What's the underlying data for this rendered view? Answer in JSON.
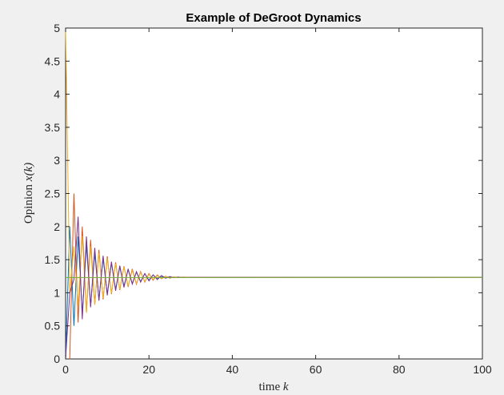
{
  "chart_data": {
    "type": "line",
    "title": "Example of DeGroot Dynamics",
    "xlabel": {
      "text": "time ",
      "var": "k"
    },
    "ylabel": {
      "text": "Opinion ",
      "math": "x(k)"
    },
    "xlim": [
      0,
      100
    ],
    "ylim": [
      0,
      5
    ],
    "xticks": [
      0,
      20,
      40,
      60,
      80,
      100
    ],
    "xtick_labels": [
      "0",
      "20",
      "40",
      "60",
      "80",
      "100"
    ],
    "yticks": [
      0,
      0.5,
      1,
      1.5,
      2,
      2.5,
      3,
      3.5,
      4,
      4.5,
      5
    ],
    "ytick_labels": [
      "0",
      "0.5",
      "1",
      "1.5",
      "2",
      "2.5",
      "3",
      "3.5",
      "4",
      "4.5",
      "5"
    ],
    "grid": false,
    "legend": "none",
    "series": [
      {
        "color": "#0072bd",
        "points": [
          [
            0,
            0
          ],
          [
            1,
            2.0
          ],
          [
            2,
            0.5
          ],
          [
            3,
            1.85
          ],
          [
            4,
            0.68
          ],
          [
            5,
            1.72
          ],
          [
            6,
            0.8
          ],
          [
            7,
            1.6
          ],
          [
            8,
            0.9
          ],
          [
            9,
            1.52
          ],
          [
            10,
            0.98
          ],
          [
            11,
            1.45
          ],
          [
            12,
            1.05
          ],
          [
            13,
            1.39
          ],
          [
            14,
            1.1
          ],
          [
            15,
            1.35
          ],
          [
            16,
            1.14
          ],
          [
            17,
            1.31
          ],
          [
            18,
            1.17
          ],
          [
            19,
            1.29
          ],
          [
            20,
            1.19
          ],
          [
            21,
            1.27
          ],
          [
            22,
            1.21
          ],
          [
            23,
            1.25
          ],
          [
            24,
            1.22
          ],
          [
            25,
            1.24
          ],
          [
            26,
            1.23
          ],
          [
            27,
            1.235
          ],
          [
            28,
            1.232
          ],
          [
            30,
            1.233
          ],
          [
            100,
            1.233
          ]
        ]
      },
      {
        "color": "#d95319",
        "points": [
          [
            0,
            0
          ],
          [
            1,
            0
          ],
          [
            2,
            2.5
          ],
          [
            3,
            0.55
          ],
          [
            4,
            2.0
          ],
          [
            5,
            0.7
          ],
          [
            6,
            1.8
          ],
          [
            7,
            0.82
          ],
          [
            8,
            1.65
          ],
          [
            9,
            0.9
          ],
          [
            10,
            1.55
          ],
          [
            11,
            0.98
          ],
          [
            12,
            1.46
          ],
          [
            13,
            1.04
          ],
          [
            14,
            1.4
          ],
          [
            15,
            1.09
          ],
          [
            16,
            1.36
          ],
          [
            17,
            1.13
          ],
          [
            18,
            1.32
          ],
          [
            19,
            1.16
          ],
          [
            20,
            1.29
          ],
          [
            21,
            1.19
          ],
          [
            22,
            1.27
          ],
          [
            23,
            1.21
          ],
          [
            24,
            1.25
          ],
          [
            25,
            1.22
          ],
          [
            26,
            1.24
          ],
          [
            27,
            1.228
          ],
          [
            28,
            1.236
          ],
          [
            30,
            1.233
          ],
          [
            100,
            1.233
          ]
        ]
      },
      {
        "color": "#edb120",
        "points": [
          [
            0,
            5.0
          ],
          [
            1,
            1.0
          ],
          [
            2,
            1.7
          ],
          [
            3,
            0.8
          ],
          [
            4,
            1.86
          ],
          [
            5,
            0.7
          ],
          [
            6,
            1.7
          ],
          [
            7,
            0.82
          ],
          [
            8,
            1.6
          ],
          [
            9,
            0.92
          ],
          [
            10,
            1.52
          ],
          [
            11,
            0.99
          ],
          [
            12,
            1.44
          ],
          [
            13,
            1.05
          ],
          [
            14,
            1.39
          ],
          [
            15,
            1.1
          ],
          [
            16,
            1.34
          ],
          [
            17,
            1.14
          ],
          [
            18,
            1.31
          ],
          [
            19,
            1.17
          ],
          [
            20,
            1.28
          ],
          [
            21,
            1.2
          ],
          [
            22,
            1.26
          ],
          [
            23,
            1.215
          ],
          [
            24,
            1.25
          ],
          [
            25,
            1.225
          ],
          [
            26,
            1.24
          ],
          [
            27,
            1.23
          ],
          [
            28,
            1.236
          ],
          [
            30,
            1.233
          ],
          [
            100,
            1.233
          ]
        ]
      },
      {
        "color": "#7e2f8e",
        "points": [
          [
            0,
            0
          ],
          [
            1,
            1.0
          ],
          [
            2,
            1.2
          ],
          [
            3,
            2.15
          ],
          [
            4,
            0.6
          ],
          [
            5,
            1.85
          ],
          [
            6,
            0.78
          ],
          [
            7,
            1.68
          ],
          [
            8,
            0.88
          ],
          [
            9,
            1.56
          ],
          [
            10,
            0.96
          ],
          [
            11,
            1.47
          ],
          [
            12,
            1.03
          ],
          [
            13,
            1.41
          ],
          [
            14,
            1.08
          ],
          [
            15,
            1.36
          ],
          [
            16,
            1.13
          ],
          [
            17,
            1.32
          ],
          [
            18,
            1.16
          ],
          [
            19,
            1.29
          ],
          [
            20,
            1.18
          ],
          [
            21,
            1.27
          ],
          [
            22,
            1.2
          ],
          [
            23,
            1.26
          ],
          [
            24,
            1.22
          ],
          [
            25,
            1.245
          ],
          [
            26,
            1.227
          ],
          [
            27,
            1.238
          ],
          [
            28,
            1.231
          ],
          [
            30,
            1.233
          ],
          [
            100,
            1.233
          ]
        ]
      },
      {
        "color": "#77ac30",
        "points": [
          [
            0,
            1.23
          ],
          [
            1,
            1.23
          ],
          [
            2,
            1.23
          ],
          [
            3,
            1.23
          ],
          [
            100,
            1.233
          ]
        ]
      }
    ]
  }
}
